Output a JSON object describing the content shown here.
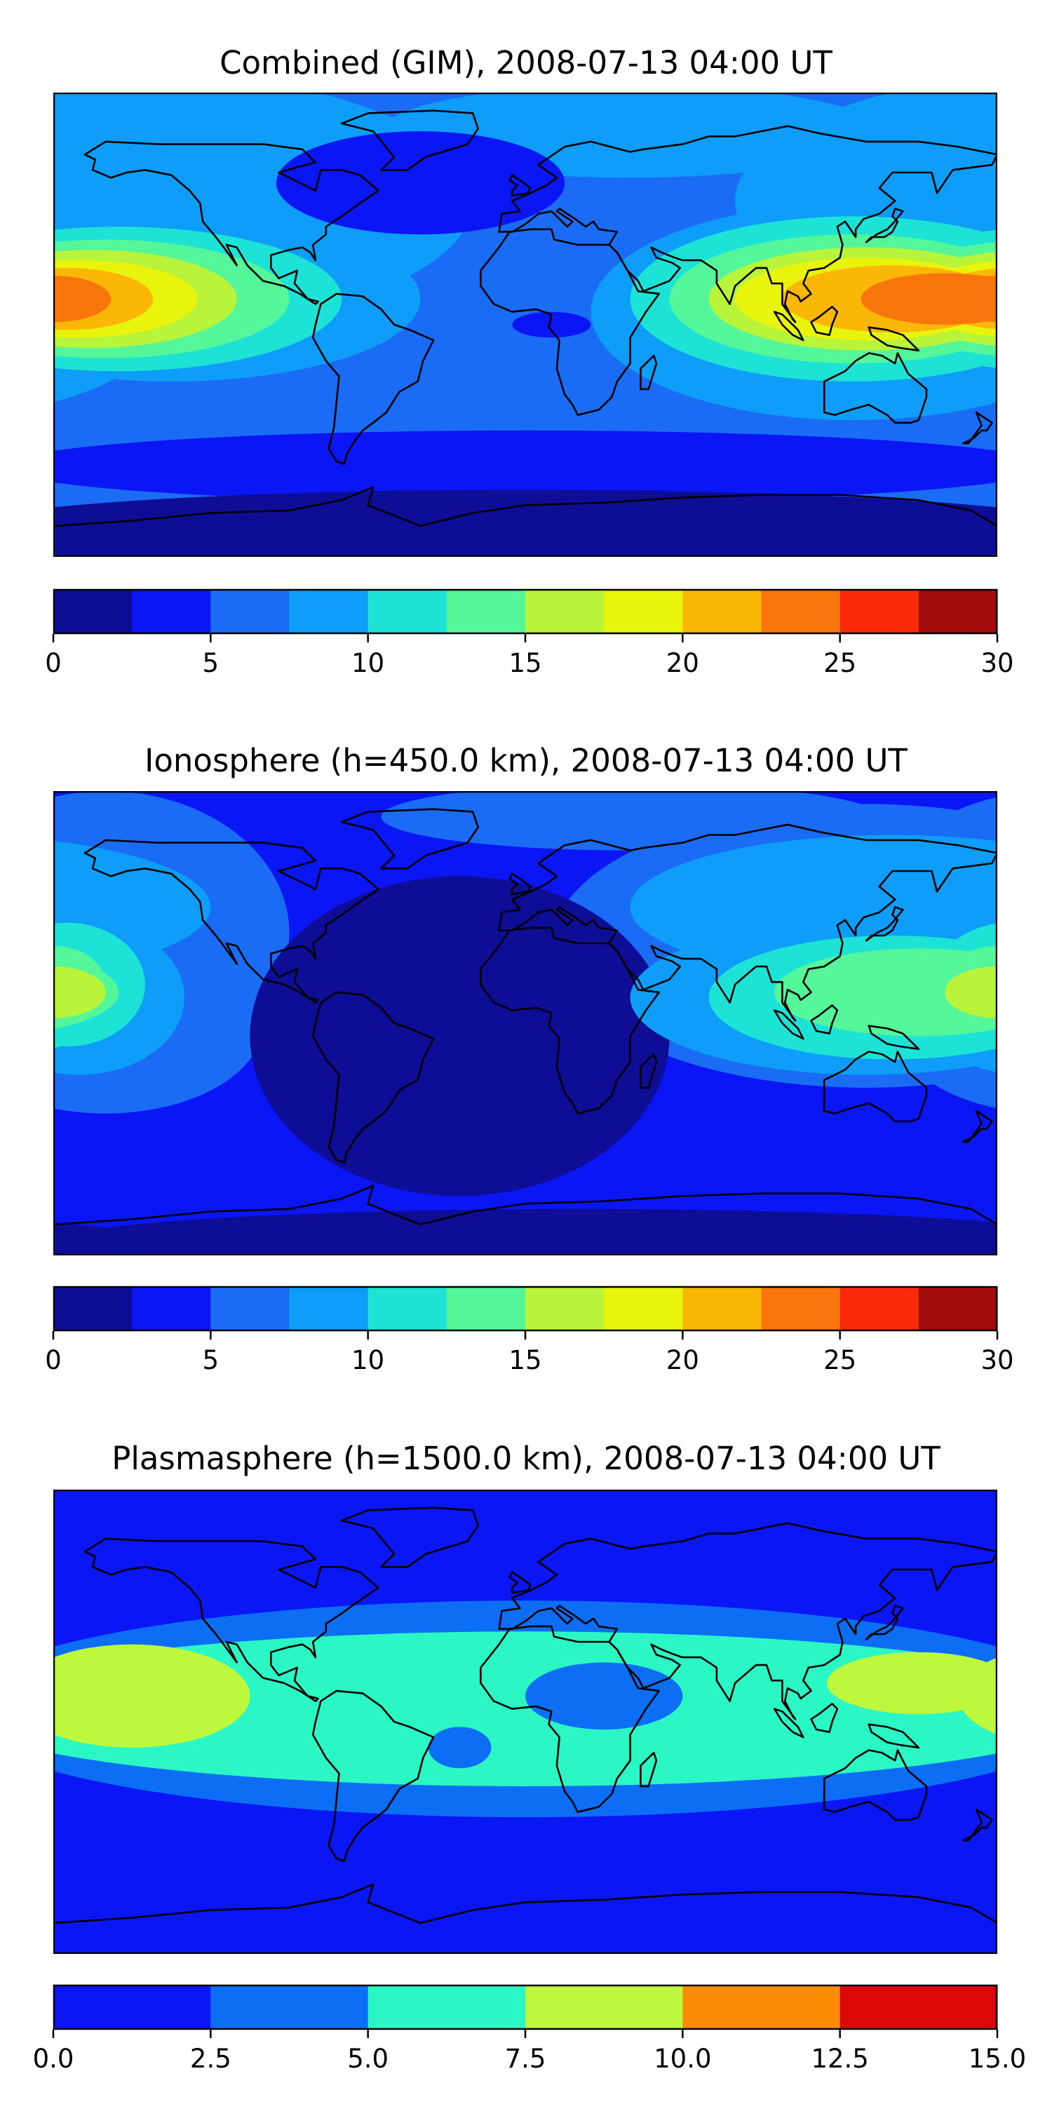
{
  "panels": [
    {
      "title": "Combined (GIM), 2008-07-13 04:00 UT",
      "base_color": "#1a6cf5",
      "blobs": [
        {
          "color": "#0e9df8",
          "lon": -150,
          "lat": 48,
          "rx": 130,
          "ry": 50
        },
        {
          "color": "#0e9df8",
          "lon": 40,
          "lat": 75,
          "rx": 95,
          "ry": 18
        },
        {
          "color": "#0e9df8",
          "lon": -135,
          "lat": 10,
          "rx": 95,
          "ry": 32
        },
        {
          "color": "#0e9df8",
          "lon": 125,
          "lat": 5,
          "rx": 100,
          "ry": 42
        },
        {
          "color": "#1de3d6",
          "lon": -155,
          "lat": 10,
          "rx": 85,
          "ry": 28
        },
        {
          "color": "#1de3d6",
          "lon": 125,
          "lat": 10,
          "rx": 85,
          "ry": 32
        },
        {
          "color": "#55f59a",
          "lon": -160,
          "lat": 10,
          "rx": 70,
          "ry": 23
        },
        {
          "color": "#55f59a",
          "lon": 125,
          "lat": 10,
          "rx": 70,
          "ry": 25
        },
        {
          "color": "#b8f53a",
          "lon": -165,
          "lat": 10,
          "rx": 55,
          "ry": 19
        },
        {
          "color": "#b8f53a",
          "lon": 130,
          "lat": 10,
          "rx": 60,
          "ry": 20
        },
        {
          "color": "#e9f40c",
          "lon": -170,
          "lat": 10,
          "rx": 45,
          "ry": 15
        },
        {
          "color": "#e9f40c",
          "lon": 130,
          "lat": 10,
          "rx": 50,
          "ry": 16
        },
        {
          "color": "#fbb707",
          "lon": -174,
          "lat": 10,
          "rx": 32,
          "ry": 12
        },
        {
          "color": "#fbb707",
          "lon": 140,
          "lat": 10,
          "rx": 42,
          "ry": 13
        },
        {
          "color": "#f8760c",
          "lon": -180,
          "lat": 10,
          "rx": 22,
          "ry": 9
        },
        {
          "color": "#f8760c",
          "lon": 160,
          "lat": 10,
          "rx": 32,
          "ry": 10
        },
        {
          "color": "#0b16f5",
          "lon": -40,
          "lat": 55,
          "rx": 55,
          "ry": 20
        },
        {
          "color": "#0b16f5",
          "lon": 10,
          "lat": 0,
          "rx": 15,
          "ry": 5
        },
        {
          "color": "#0b16f5",
          "lon": 0,
          "lat": -55,
          "rx": 200,
          "ry": 14
        },
        {
          "color": "#0d0d96",
          "lon": 0,
          "lat": -80,
          "rx": 220,
          "ry": 16
        }
      ]
    },
    {
      "title": "Ionosphere  (h=450.0 km), 2008-07-13 04:00 UT",
      "base_color": "#0b16f5",
      "blobs": [
        {
          "color": "#1a6cf5",
          "lon": 130,
          "lat": 30,
          "rx": 120,
          "ry": 55
        },
        {
          "color": "#1a6cf5",
          "lon": -160,
          "lat": 35,
          "rx": 70,
          "ry": 55
        },
        {
          "color": "#1a6cf5",
          "lon": -160,
          "lat": 0,
          "rx": 60,
          "ry": 35
        },
        {
          "color": "#1a6cf5",
          "lon": 40,
          "lat": 80,
          "rx": 95,
          "ry": 13
        },
        {
          "color": "#0d0d96",
          "lon": -25,
          "lat": -5,
          "rx": 80,
          "ry": 62
        },
        {
          "color": "#0d0d96",
          "lon": 20,
          "lat": -85,
          "rx": 200,
          "ry": 13
        },
        {
          "color": "#0e9df8",
          "lon": 140,
          "lat": 45,
          "rx": 100,
          "ry": 28
        },
        {
          "color": "#0e9df8",
          "lon": 130,
          "lat": 10,
          "rx": 90,
          "ry": 30
        },
        {
          "color": "#0e9df8",
          "lon": -170,
          "lat": 10,
          "rx": 40,
          "ry": 30
        },
        {
          "color": "#1de3d6",
          "lon": 140,
          "lat": 10,
          "rx": 70,
          "ry": 24
        },
        {
          "color": "#1de3d6",
          "lon": -175,
          "lat": 15,
          "rx": 30,
          "ry": 24
        },
        {
          "color": "#55f59a",
          "lon": 150,
          "lat": 12,
          "rx": 55,
          "ry": 17
        },
        {
          "color": "#55f59a",
          "lon": -180,
          "lat": 15,
          "rx": 20,
          "ry": 15
        },
        {
          "color": "#b8f53a",
          "lon": 180,
          "lat": 12,
          "rx": 20,
          "ry": 10
        }
      ]
    },
    {
      "title": "Plasmasphere (h=1500.0 km), 2008-07-13 04:00 UT",
      "base_color": "#0b16f5",
      "blobs": [
        {
          "color": "#0b6ef5",
          "lon": 0,
          "lat": 5,
          "rx": 220,
          "ry": 42
        },
        {
          "color": "#2bf7c4",
          "lon": 0,
          "lat": 5,
          "rx": 220,
          "ry": 30
        },
        {
          "color": "#0b6ef5",
          "lon": 30,
          "lat": 10,
          "rx": 30,
          "ry": 13
        },
        {
          "color": "#0b6ef5",
          "lon": -25,
          "lat": -10,
          "rx": 12,
          "ry": 8
        },
        {
          "color": "#bdf83c",
          "lon": -150,
          "lat": 10,
          "rx": 45,
          "ry": 20
        },
        {
          "color": "#bdf83c",
          "lon": 150,
          "lat": 15,
          "rx": 35,
          "ry": 12
        }
      ]
    }
  ],
  "colorbars": [
    {
      "colors": [
        "#0d0d96",
        "#0b16f5",
        "#1a6cf5",
        "#0e9df8",
        "#1de3d6",
        "#55f59a",
        "#b8f53a",
        "#e9f40c",
        "#fbb707",
        "#f8760c",
        "#fa2a0b",
        "#a40b0b"
      ],
      "min": 0,
      "max": 30,
      "ticks": [
        {
          "value": 0,
          "label": "0"
        },
        {
          "value": 5,
          "label": "5"
        },
        {
          "value": 10,
          "label": "10"
        },
        {
          "value": 15,
          "label": "15"
        },
        {
          "value": 20,
          "label": "20"
        },
        {
          "value": 25,
          "label": "25"
        },
        {
          "value": 30,
          "label": "30"
        }
      ]
    },
    {
      "colors": [
        "#0d0d96",
        "#0b16f5",
        "#1a6cf5",
        "#0e9df8",
        "#1de3d6",
        "#55f59a",
        "#b8f53a",
        "#e9f40c",
        "#fbb707",
        "#f8760c",
        "#fa2a0b",
        "#a40b0b"
      ],
      "min": 0,
      "max": 30,
      "ticks": [
        {
          "value": 0,
          "label": "0"
        },
        {
          "value": 5,
          "label": "5"
        },
        {
          "value": 10,
          "label": "10"
        },
        {
          "value": 15,
          "label": "15"
        },
        {
          "value": 20,
          "label": "20"
        },
        {
          "value": 25,
          "label": "25"
        },
        {
          "value": 30,
          "label": "30"
        }
      ]
    },
    {
      "colors": [
        "#0b16f5",
        "#0b6ef5",
        "#2bf7c4",
        "#bdf83c",
        "#fb8c06",
        "#de0707"
      ],
      "min": 0,
      "max": 15,
      "ticks": [
        {
          "value": 0,
          "label": "0.0"
        },
        {
          "value": 2.5,
          "label": "2.5"
        },
        {
          "value": 5,
          "label": "5.0"
        },
        {
          "value": 7.5,
          "label": "7.5"
        },
        {
          "value": 10,
          "label": "10.0"
        },
        {
          "value": 12.5,
          "label": "12.5"
        },
        {
          "value": 15,
          "label": "15.0"
        }
      ]
    }
  ],
  "coastline_color": "#000000"
}
